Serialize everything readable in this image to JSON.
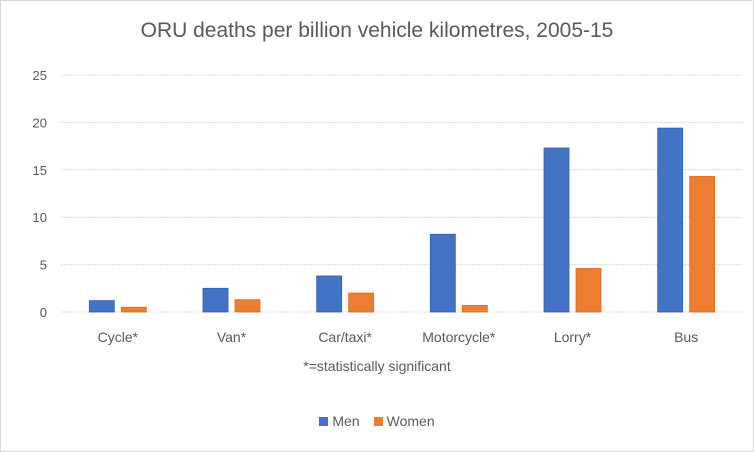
{
  "chart_data": {
    "type": "bar",
    "title": "ORU deaths per billion vehicle kilometres, 2005-15",
    "categories": [
      "Cycle*",
      "Van*",
      "Car/taxi*",
      "Motorcycle*",
      "Lorry*",
      "Bus"
    ],
    "series": [
      {
        "name": "Men",
        "color": "#4472C4",
        "values": [
          1.2,
          2.5,
          3.8,
          8.2,
          17.3,
          19.4
        ]
      },
      {
        "name": "Women",
        "color": "#ED7D31",
        "values": [
          0.5,
          1.3,
          2.0,
          0.7,
          4.6,
          14.3
        ]
      }
    ],
    "xlabel": "*=statistically significant",
    "ylabel": "",
    "ylim": [
      0,
      25
    ],
    "yticks": [
      "0",
      "5",
      "10",
      "15",
      "20",
      "25"
    ],
    "grid": true,
    "legend": "bottom"
  }
}
